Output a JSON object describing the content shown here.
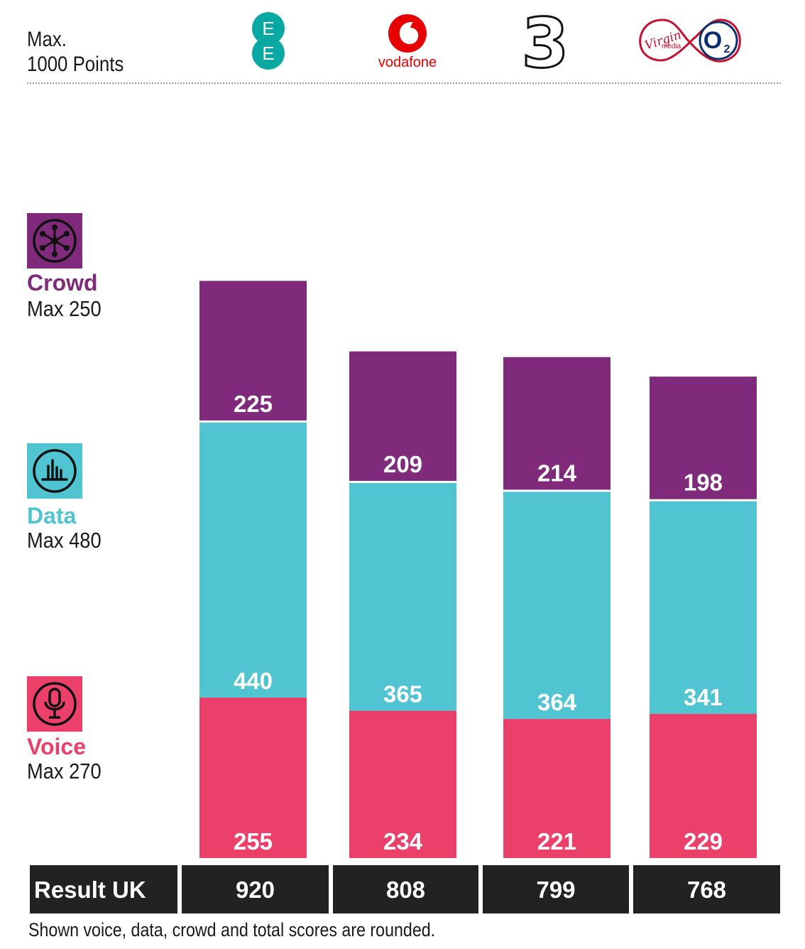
{
  "header": {
    "max_line1": "Max.",
    "max_line2": "1000 Points"
  },
  "operators": [
    {
      "name": "EE",
      "logo_text": [
        "E",
        "E"
      ],
      "logo_icon": "ee-logo-icon"
    },
    {
      "name": "Vodafone",
      "logo_text": "vodafone",
      "logo_icon": "vodafone-logo-icon"
    },
    {
      "name": "Three",
      "logo_text": "3",
      "logo_icon": "three-logo-icon"
    },
    {
      "name": "Virgin Media O2",
      "logo_text": [
        "Virgin",
        "media",
        "O",
        "2"
      ],
      "logo_icon": "virgin-media-o2-logo-icon"
    }
  ],
  "legend": {
    "crowd": {
      "label": "Crowd",
      "max": "Max 250",
      "icon": "crowd-network-icon"
    },
    "data": {
      "label": "Data",
      "max": "Max 480",
      "icon": "data-bars-icon"
    },
    "voice": {
      "label": "Voice",
      "max": "Max 270",
      "icon": "microphone-icon"
    }
  },
  "colors": {
    "crowd": "#7f2a7b",
    "data": "#50c5d1",
    "voice": "#eb4069",
    "result_bg": "#222222"
  },
  "chart_data": {
    "type": "bar",
    "stacked": true,
    "categories": [
      "EE",
      "Vodafone",
      "Three",
      "Virgin Media O2"
    ],
    "series": [
      {
        "name": "Voice",
        "values": [
          255,
          234,
          221,
          229
        ]
      },
      {
        "name": "Data",
        "values": [
          440,
          365,
          364,
          341
        ]
      },
      {
        "name": "Crowd",
        "values": [
          225,
          209,
          214,
          198
        ]
      }
    ],
    "totals": [
      920,
      808,
      799,
      768
    ],
    "ylim": [
      0,
      1000
    ],
    "legend_position": "left",
    "grid": false
  },
  "result_row": {
    "label": "Result UK",
    "values": [
      "920",
      "808",
      "799",
      "768"
    ]
  },
  "footnote": "Shown voice, data, crowd and total scores are rounded."
}
